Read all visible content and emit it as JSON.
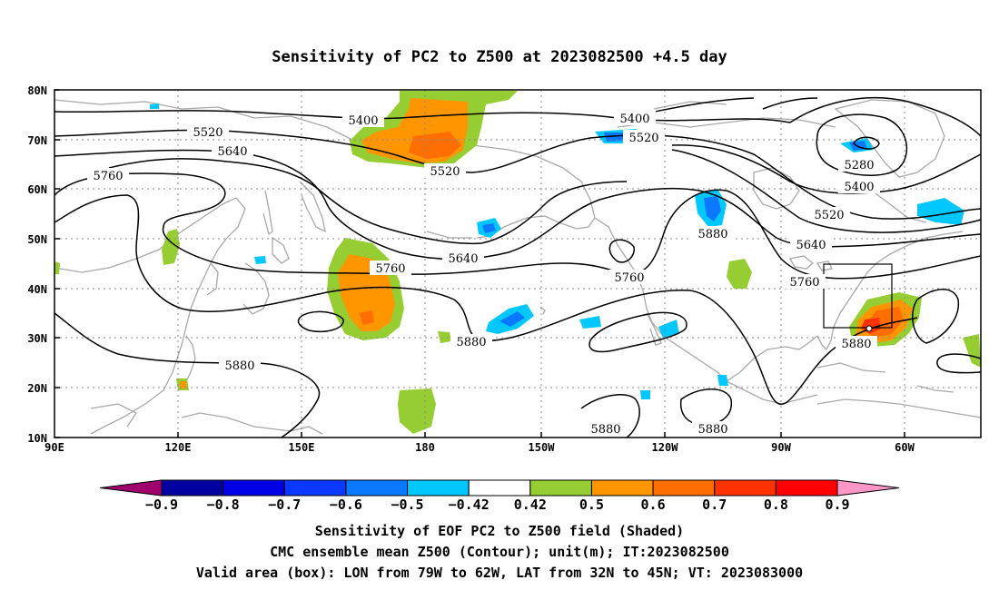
{
  "title": "Sensitivity of PC2 to Z500 at 2023082500 +4.5 day",
  "lat_labels": [
    "80N",
    "70N",
    "60N",
    "50N",
    "40N",
    "30N",
    "20N",
    "10N"
  ],
  "lon_labels": [
    "90E",
    "120E",
    "150E",
    "180",
    "150W",
    "120W",
    "90W",
    "60W"
  ],
  "contour_labels": [
    "5400",
    "5520",
    "5640",
    "5760",
    "5400",
    "5520",
    "5520",
    "5640",
    "5760",
    "5280",
    "5400",
    "5520",
    "5640",
    "5760",
    "5880",
    "5760",
    "5880",
    "5880",
    "5880",
    "5880",
    "5880"
  ],
  "colorbar": {
    "labels": [
      "−0.9",
      "−0.8",
      "−0.7",
      "−0.6",
      "−0.5",
      "−0.42",
      "0.42",
      "0.5",
      "0.6",
      "0.7",
      "0.8",
      "0.9"
    ],
    "colors": [
      "#a0006e",
      "#0000a0",
      "#0000e6",
      "#0a38ff",
      "#0a78ff",
      "#00c8ff",
      "#ffffff",
      "#96cd32",
      "#ff9600",
      "#ff6e00",
      "#ff3200",
      "#ff0000",
      "#ff96c8"
    ]
  },
  "captions": [
    "Sensitivity of EOF PC2 to Z500 field (Shaded)",
    "CMC ensemble mean Z500 (Contour); unit(m); IT:2023082500",
    "Valid area (box): LON from 79W to 62W, LAT from 32N to 45N; VT: 2023083000"
  ],
  "chart_data": {
    "type": "heatmap",
    "title": "Sensitivity of PC2 to Z500 at 2023082500 +4.5 day",
    "x_range": [
      "90E",
      "45W"
    ],
    "y_range": [
      "10N",
      "80N"
    ],
    "contour_variable": "Z500",
    "contour_levels": [
      5280,
      5400,
      5520,
      5640,
      5760,
      5880
    ],
    "valid_box": {
      "lon": [
        "79W",
        "62W"
      ],
      "lat": [
        "32N",
        "45N"
      ]
    },
    "colorbar_levels": [
      -0.9,
      -0.8,
      -0.7,
      -0.6,
      -0.5,
      -0.42,
      0.42,
      0.5,
      0.6,
      0.7,
      0.8,
      0.9
    ],
    "grid": true
  }
}
